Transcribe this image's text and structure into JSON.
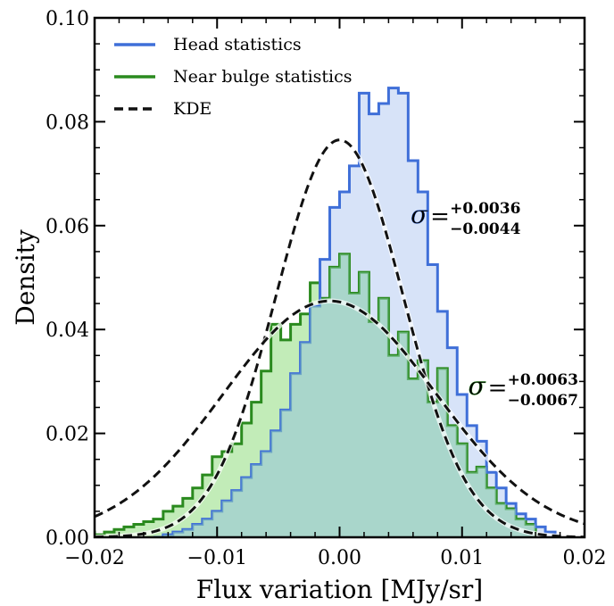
{
  "chart_data": {
    "type": "histogram",
    "xlabel": "Flux variation [MJy/sr]",
    "ylabel": "Density",
    "xlim": [
      -0.02,
      0.02
    ],
    "ylim": [
      0.0,
      0.1
    ],
    "grid": false,
    "legend_position": "top-left",
    "x_ticks": [
      "−0.02",
      "−0.01",
      "0.00",
      "0.01",
      "0.02"
    ],
    "y_ticks": [
      "0.00",
      "0.02",
      "0.04",
      "0.06",
      "0.08",
      "0.10"
    ],
    "legend": [
      {
        "label": "Head statistics",
        "style": "solid",
        "color": "#3f6fd8"
      },
      {
        "label": "Near bulge statistics",
        "style": "solid",
        "color": "#2a8a1e"
      },
      {
        "label": "KDE",
        "style": "dashed",
        "color": "#111111"
      }
    ],
    "histograms": [
      {
        "name": "Head statistics",
        "color": "#3f6fd8",
        "fill": "#c9d9f5",
        "bin_width": 0.0008,
        "bin_start": -0.0152,
        "values": [
          0.0,
          0.0005,
          0.001,
          0.0015,
          0.0025,
          0.0035,
          0.005,
          0.007,
          0.009,
          0.0115,
          0.014,
          0.0165,
          0.0205,
          0.0245,
          0.0315,
          0.0375,
          0.0445,
          0.0535,
          0.0635,
          0.0665,
          0.0715,
          0.0855,
          0.0815,
          0.0835,
          0.0865,
          0.0855,
          0.0725,
          0.0665,
          0.0525,
          0.0435,
          0.0365,
          0.0275,
          0.0215,
          0.0185,
          0.0125,
          0.0095,
          0.0065,
          0.0045,
          0.0035,
          0.002,
          0.001
        ]
      },
      {
        "name": "Near bulge statistics",
        "color": "#2a8a1e",
        "fill": "#c2ecb8",
        "bin_width": 0.0008,
        "bin_start": -0.0208,
        "values": [
          0.001,
          0.0005,
          0.001,
          0.0015,
          0.002,
          0.0025,
          0.003,
          0.0035,
          0.005,
          0.006,
          0.0075,
          0.0095,
          0.012,
          0.0155,
          0.0165,
          0.018,
          0.022,
          0.026,
          0.032,
          0.041,
          0.038,
          0.041,
          0.043,
          0.049,
          0.046,
          0.052,
          0.0545,
          0.047,
          0.051,
          0.0415,
          0.046,
          0.035,
          0.0395,
          0.0305,
          0.034,
          0.026,
          0.0325,
          0.0215,
          0.018,
          0.0125,
          0.0135,
          0.0095,
          0.0065,
          0.0055,
          0.0035,
          0.0025
        ]
      }
    ],
    "kde": [
      {
        "name": "Head KDE",
        "mean": 0.0,
        "std": 0.0052,
        "peak": 0.0765
      },
      {
        "name": "Near bulge KDE",
        "mean": -0.0008,
        "std": 0.0087,
        "peak": 0.0455
      }
    ],
    "annotations": [
      {
        "symbol": "σ",
        "equals": "=",
        "upper": "+0.0036",
        "lower": "−0.0044",
        "color": "#3f6fd8",
        "x": 0.0058,
        "y": 0.0605
      },
      {
        "symbol": "σ",
        "equals": "=",
        "upper": "+0.0063",
        "lower": "−0.0067",
        "color": "#2a8a1e",
        "x": 0.0105,
        "y": 0.0275
      }
    ]
  }
}
